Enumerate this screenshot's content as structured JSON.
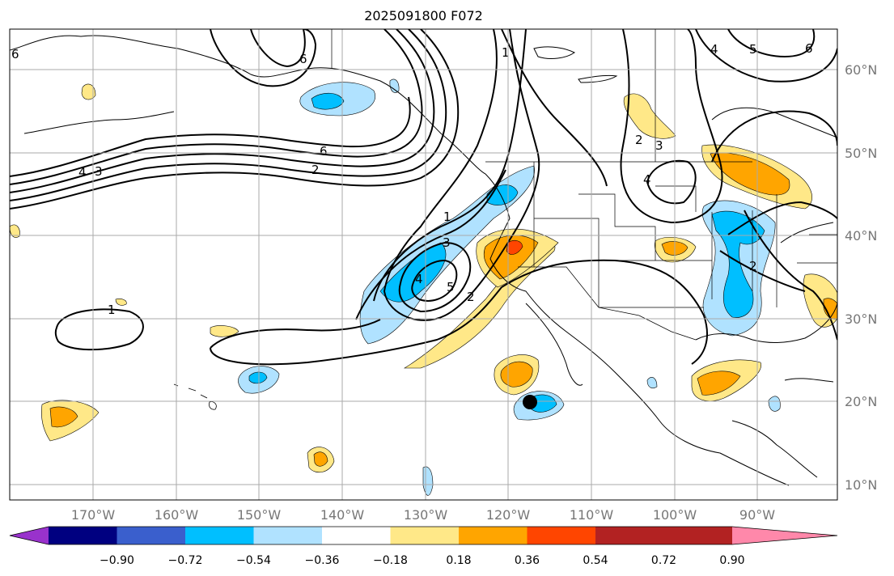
{
  "title": "2025091800 F072",
  "lat_labels": [
    "60°N",
    "50°N",
    "40°N",
    "30°N",
    "20°N",
    "10°N"
  ],
  "lon_labels": [
    "170°W",
    "160°W",
    "150°W",
    "140°W",
    "130°W",
    "120°W",
    "110°W",
    "100°W",
    "90°W"
  ],
  "colorbar": {
    "colors": [
      "#9932cc",
      "#000080",
      "#3a5fcd",
      "#00bfff",
      "#b0e2ff",
      "#ffffff",
      "#ffe888",
      "#ffa500",
      "#ff4500",
      "#b22222",
      "#ff88aa"
    ],
    "ticks": [
      "−0.90",
      "−0.72",
      "−0.54",
      "−0.36",
      "−0.18",
      "0.18",
      "0.36",
      "0.54",
      "0.72",
      "0.90"
    ]
  },
  "contour_labels": {
    "l1": "1",
    "l2": "2",
    "l3": "3",
    "l4": "4",
    "l5": "5",
    "l6": "6"
  },
  "colors": {
    "positive_low": "#ffe888",
    "positive_mid": "#ffa500",
    "positive_high": "#ff4500",
    "negative_low": "#b0e2ff",
    "negative_mid": "#00bfff",
    "grid": "#aaaaaa",
    "marker": "#000000"
  }
}
